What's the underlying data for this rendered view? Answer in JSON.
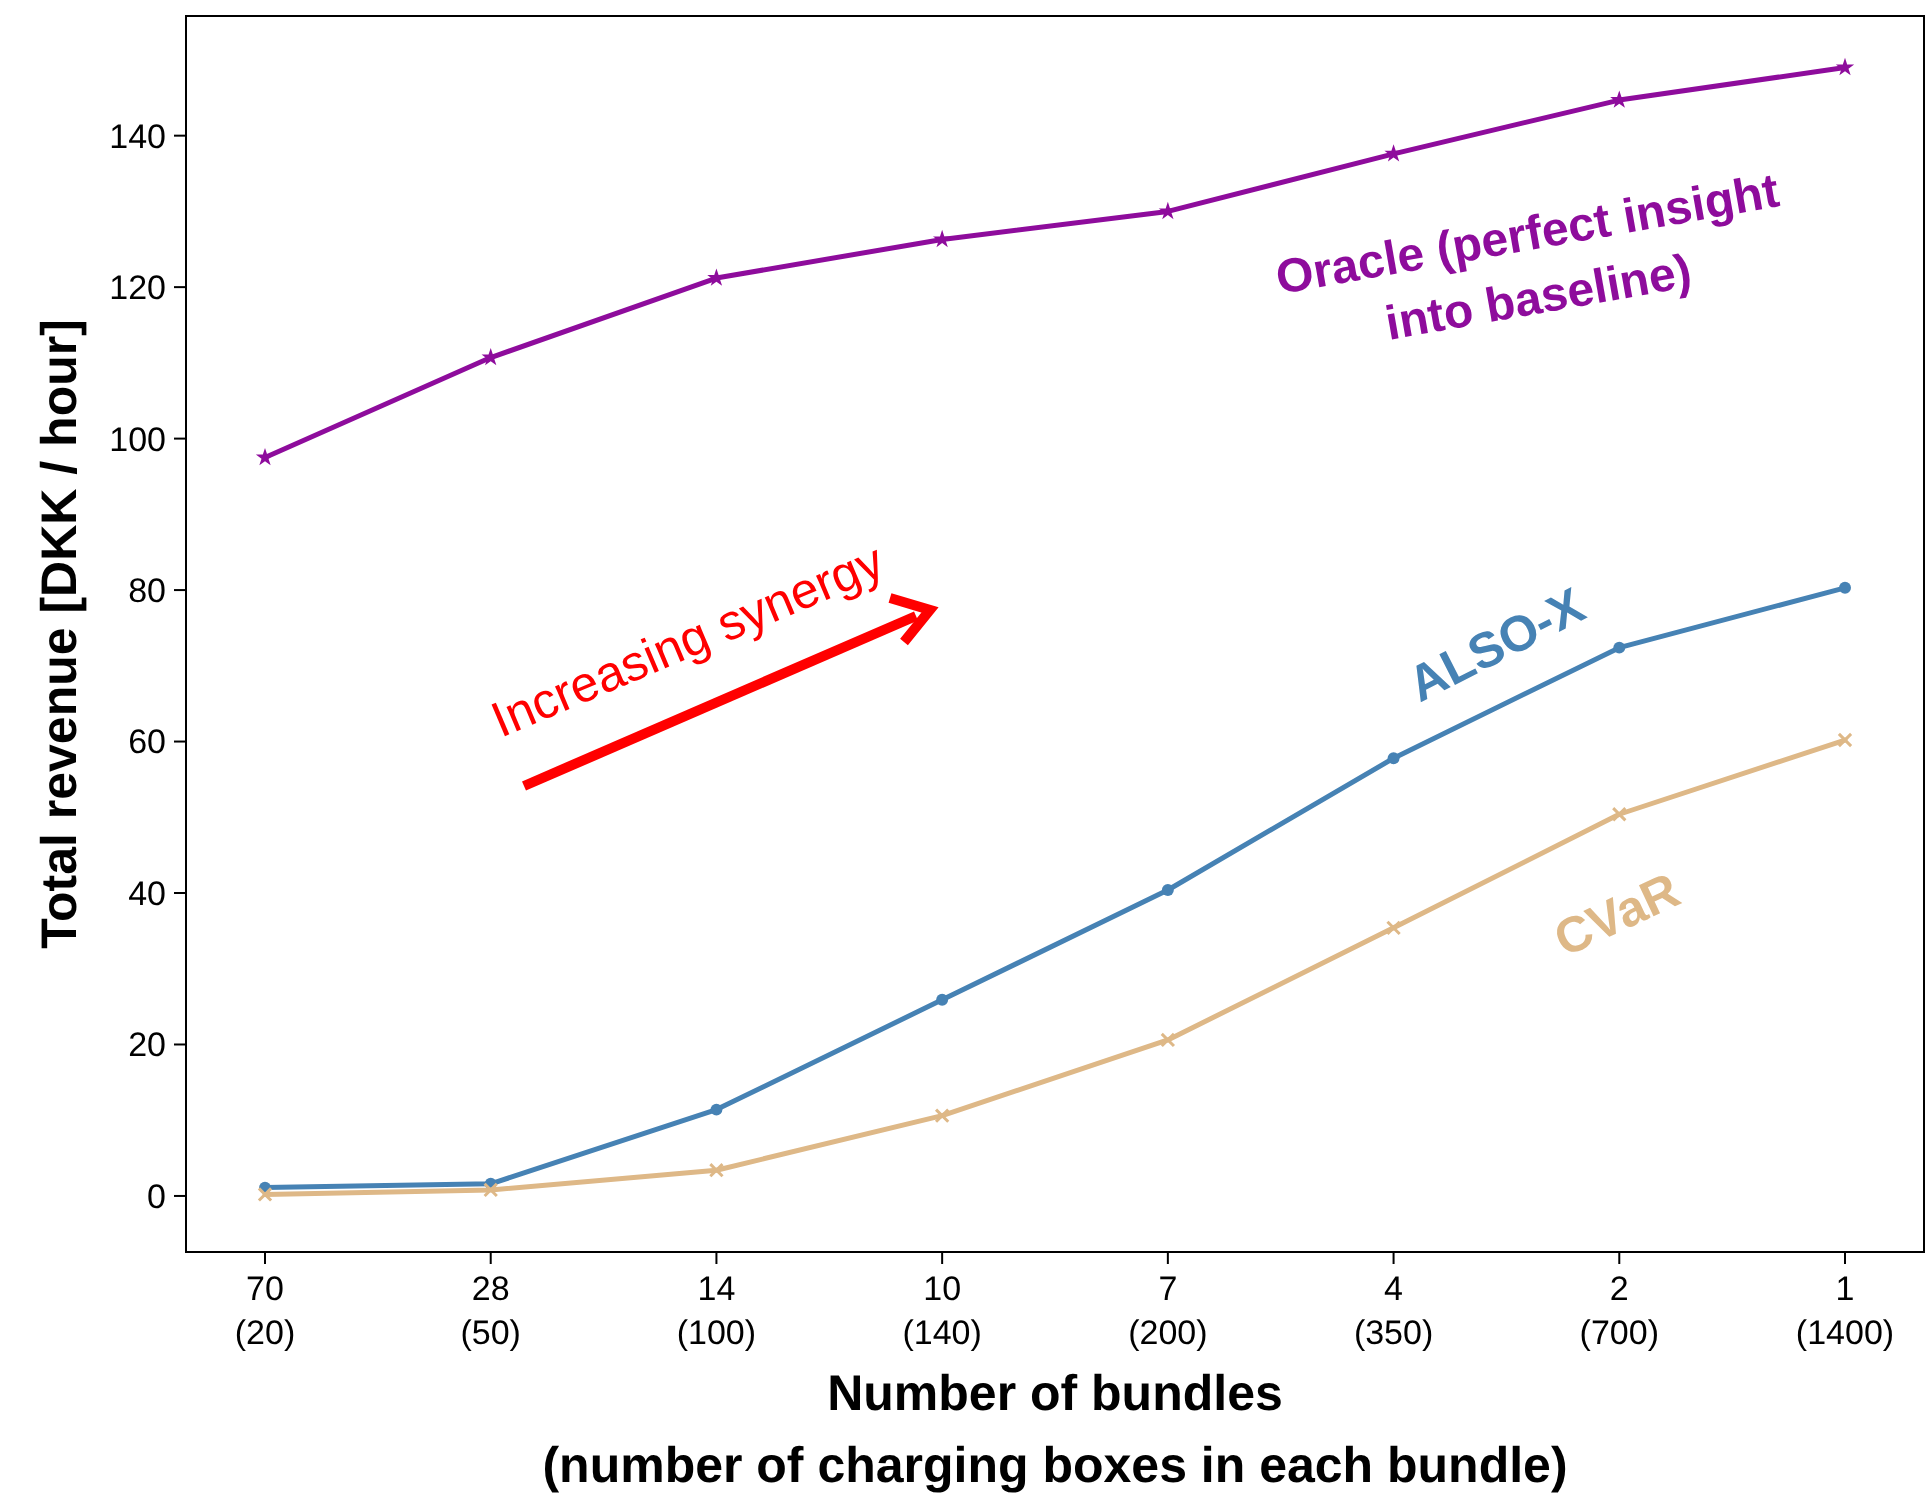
{
  "chart_data": {
    "type": "line",
    "xlabel": "Number of bundles\n(number of charging boxes in each bundle)",
    "ylabel": "Total revenue [DKK / hour]",
    "categories": [
      "70\n(20)",
      "28\n(50)",
      "14\n(100)",
      "10\n(140)",
      "7\n(200)",
      "4\n(350)",
      "2\n(700)",
      "1\n(1400)"
    ],
    "series": [
      {
        "name": "Oracle (perfect insight into baseline)",
        "color": "#8e0c9c",
        "marker": "star",
        "values": [
          97.5,
          110.7,
          121.2,
          126.3,
          130,
          137.6,
          144.7,
          149
        ]
      },
      {
        "name": "ALSO-X",
        "color": "#4682b4",
        "marker": "circle",
        "values": [
          1.1,
          1.6,
          11.4,
          25.9,
          40.4,
          57.8,
          72.4,
          80.3
        ]
      },
      {
        "name": "CVaR",
        "color": "#deb887",
        "marker": "cross",
        "values": [
          0.2,
          0.8,
          3.4,
          10.6,
          20.6,
          35.4,
          50.4,
          60.2
        ]
      }
    ],
    "annotations": [
      "Increasing synergy"
    ],
    "ylim": [
      -7.4,
      155.8
    ],
    "yticks": [
      0,
      20,
      40,
      60,
      80,
      100,
      120,
      140
    ],
    "grid": false,
    "line_style": "solid"
  }
}
